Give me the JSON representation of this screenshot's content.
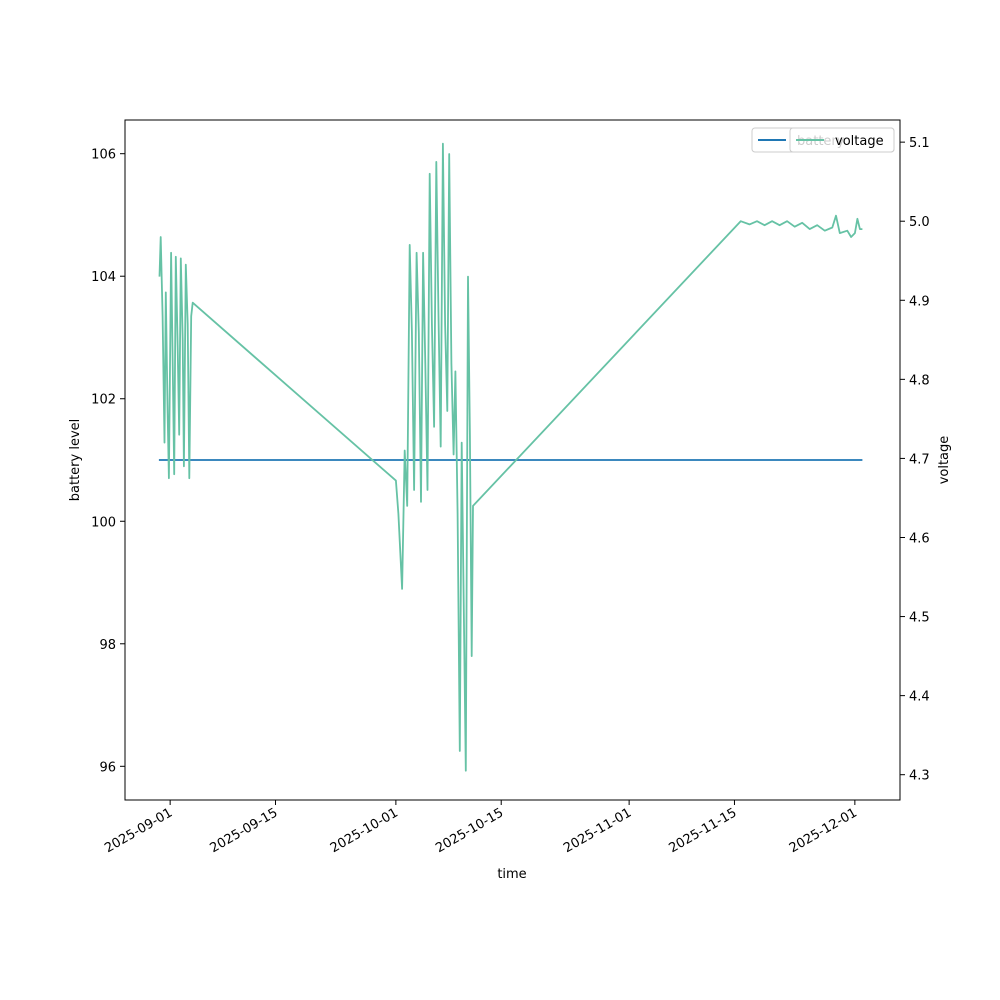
{
  "chart_data": {
    "type": "line",
    "xlabel": "time",
    "ylabel_left": "battery level",
    "ylabel_right": "voltage",
    "x_range": [
      "2025-08-26",
      "2025-12-07"
    ],
    "y_left_range": [
      95.45,
      106.55
    ],
    "y_right_range": [
      4.268,
      5.128
    ],
    "x_ticks": [
      "2025-09-01",
      "2025-09-15",
      "2025-10-01",
      "2025-10-15",
      "2025-11-01",
      "2025-11-15",
      "2025-12-01"
    ],
    "y_left_ticks": [
      96,
      98,
      100,
      102,
      104,
      106
    ],
    "y_right_ticks": [
      4.3,
      4.4,
      4.5,
      4.6,
      4.7,
      4.8,
      4.9,
      5.0,
      5.1
    ],
    "legend": {
      "placement": "upper-right",
      "entries": [
        "battery",
        "voltage"
      ]
    },
    "colors": {
      "battery": "#1f77b4",
      "voltage": "#66c2a5"
    },
    "series": [
      {
        "name": "battery",
        "axis": "left",
        "color": "#1f77b4",
        "points": [
          [
            "2025-08-30T12:00",
            101.0
          ],
          [
            "2025-12-02T00:00",
            101.0
          ]
        ]
      },
      {
        "name": "voltage",
        "axis": "right",
        "color": "#66c2a5",
        "points": [
          [
            "2025-08-30T14:00",
            4.93
          ],
          [
            "2025-08-30T18:00",
            4.98
          ],
          [
            "2025-08-31T00:00",
            4.88
          ],
          [
            "2025-08-31T06:00",
            4.72
          ],
          [
            "2025-08-31T10:00",
            4.91
          ],
          [
            "2025-08-31T16:00",
            4.76
          ],
          [
            "2025-08-31T20:00",
            4.675
          ],
          [
            "2025-09-01T03:00",
            4.96
          ],
          [
            "2025-09-01T08:00",
            4.82
          ],
          [
            "2025-09-01T13:00",
            4.68
          ],
          [
            "2025-09-01T18:00",
            4.955
          ],
          [
            "2025-09-02T00:00",
            4.84
          ],
          [
            "2025-09-02T05:00",
            4.73
          ],
          [
            "2025-09-02T10:00",
            4.953
          ],
          [
            "2025-09-02T16:00",
            4.85
          ],
          [
            "2025-09-02T20:00",
            4.69
          ],
          [
            "2025-09-03T02:00",
            4.945
          ],
          [
            "2025-09-03T08:00",
            4.87
          ],
          [
            "2025-09-03T13:00",
            4.675
          ],
          [
            "2025-09-03T19:00",
            4.88
          ],
          [
            "2025-09-04T00:00",
            4.897
          ],
          [
            "2025-10-01T00:00",
            4.672
          ],
          [
            "2025-10-01T08:00",
            4.63
          ],
          [
            "2025-10-01T20:00",
            4.535
          ],
          [
            "2025-10-02T04:00",
            4.71
          ],
          [
            "2025-10-02T12:00",
            4.64
          ],
          [
            "2025-10-02T20:00",
            4.97
          ],
          [
            "2025-10-03T03:00",
            4.86
          ],
          [
            "2025-10-03T10:00",
            4.66
          ],
          [
            "2025-10-03T18:00",
            4.96
          ],
          [
            "2025-10-04T01:00",
            4.86
          ],
          [
            "2025-10-04T08:00",
            4.645
          ],
          [
            "2025-10-04T15:00",
            4.96
          ],
          [
            "2025-10-04T22:00",
            4.82
          ],
          [
            "2025-10-05T05:00",
            4.66
          ],
          [
            "2025-10-05T12:00",
            5.06
          ],
          [
            "2025-10-05T19:00",
            4.87
          ],
          [
            "2025-10-06T02:00",
            4.74
          ],
          [
            "2025-10-06T09:00",
            5.075
          ],
          [
            "2025-10-06T16:00",
            4.88
          ],
          [
            "2025-10-06T23:00",
            4.715
          ],
          [
            "2025-10-07T06:00",
            5.098
          ],
          [
            "2025-10-07T13:00",
            4.87
          ],
          [
            "2025-10-07T20:00",
            4.76
          ],
          [
            "2025-10-08T02:00",
            5.085
          ],
          [
            "2025-10-08T09:00",
            4.82
          ],
          [
            "2025-10-08T16:00",
            4.705
          ],
          [
            "2025-10-08T22:00",
            4.81
          ],
          [
            "2025-10-09T05:00",
            4.63
          ],
          [
            "2025-10-09T12:00",
            4.33
          ],
          [
            "2025-10-09T18:00",
            4.72
          ],
          [
            "2025-10-10T00:00",
            4.53
          ],
          [
            "2025-10-10T07:00",
            4.305
          ],
          [
            "2025-10-10T14:00",
            4.93
          ],
          [
            "2025-10-10T20:00",
            4.73
          ],
          [
            "2025-10-11T02:00",
            4.45
          ],
          [
            "2025-10-11T06:00",
            4.64
          ],
          [
            "2025-11-15T20:00",
            5.0
          ],
          [
            "2025-11-17T00:00",
            4.996
          ],
          [
            "2025-11-18T00:00",
            5.0
          ],
          [
            "2025-11-19T00:00",
            4.995
          ],
          [
            "2025-11-20T00:00",
            5.0
          ],
          [
            "2025-11-21T00:00",
            4.995
          ],
          [
            "2025-11-22T00:00",
            5.0
          ],
          [
            "2025-11-23T00:00",
            4.993
          ],
          [
            "2025-11-24T00:00",
            4.998
          ],
          [
            "2025-11-25T00:00",
            4.99
          ],
          [
            "2025-11-26T00:00",
            4.995
          ],
          [
            "2025-11-27T00:00",
            4.988
          ],
          [
            "2025-11-28T00:00",
            4.992
          ],
          [
            "2025-11-28T12:00",
            5.007
          ],
          [
            "2025-11-29T00:00",
            4.985
          ],
          [
            "2025-11-30T00:00",
            4.988
          ],
          [
            "2025-11-30T12:00",
            4.98
          ],
          [
            "2025-12-01T00:00",
            4.985
          ],
          [
            "2025-12-01T08:00",
            5.003
          ],
          [
            "2025-12-01T16:00",
            4.99
          ],
          [
            "2025-12-02T00:00",
            4.99
          ]
        ]
      }
    ]
  }
}
